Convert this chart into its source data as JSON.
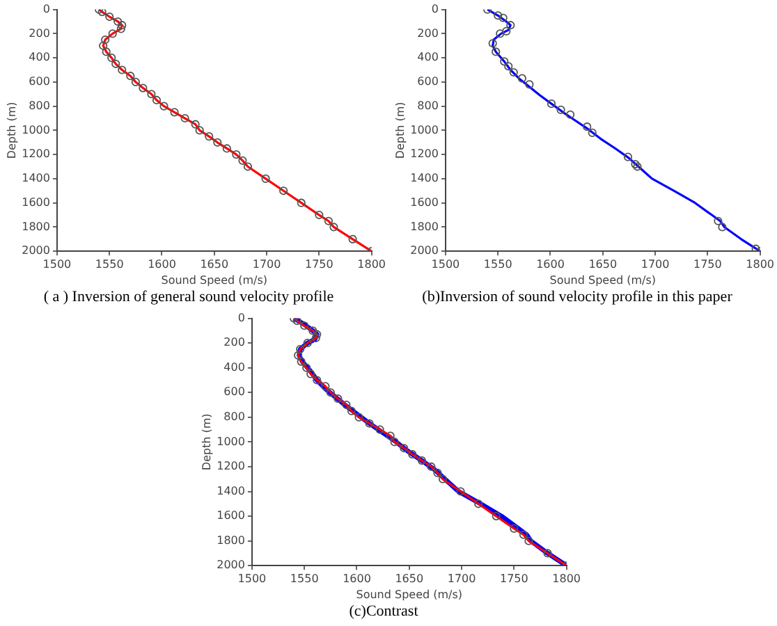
{
  "chart_data": [
    {
      "type": "line",
      "title": "( a ) Inversion of general sound velocity profile",
      "xlabel": "Sound Speed (m/s)",
      "ylabel": "Depth (m)",
      "xlim": [
        1500,
        1800
      ],
      "xticks": [
        1500,
        1550,
        1600,
        1650,
        1700,
        1750,
        1800
      ],
      "ylim": [
        2000,
        0
      ],
      "yticks": [
        0,
        200,
        400,
        600,
        800,
        1000,
        1200,
        1400,
        1600,
        1800,
        2000
      ],
      "grid": false,
      "legend": false,
      "series": [
        {
          "type": "line",
          "color": "#ff0000",
          "marker": "circle",
          "x": [
            1540,
            1543,
            1550,
            1558,
            1562,
            1561,
            1553,
            1546,
            1544,
            1547,
            1552,
            1556,
            1562,
            1570,
            1575,
            1582,
            1590,
            1595,
            1602,
            1612,
            1622,
            1632,
            1636,
            1645,
            1653,
            1662,
            1671,
            1677,
            1682,
            1699,
            1716,
            1733,
            1750,
            1759,
            1764,
            1782,
            1800
          ],
          "values": [
            0,
            20,
            60,
            100,
            130,
            160,
            200,
            250,
            300,
            350,
            400,
            450,
            500,
            550,
            600,
            650,
            700,
            750,
            800,
            850,
            900,
            950,
            1000,
            1050,
            1100,
            1150,
            1200,
            1250,
            1300,
            1400,
            1500,
            1600,
            1700,
            1750,
            1800,
            1900,
            2000
          ]
        }
      ]
    },
    {
      "type": "line",
      "title": "(b)Inversion of sound velocity profile in this paper",
      "xlabel": "Sound Speed (m/s)",
      "ylabel": "Depth (m)",
      "xlim": [
        1500,
        1800
      ],
      "xticks": [
        1500,
        1550,
        1600,
        1650,
        1700,
        1750,
        1800
      ],
      "ylim": [
        2000,
        0
      ],
      "yticks": [
        0,
        200,
        400,
        600,
        800,
        1000,
        1200,
        1400,
        1600,
        1800,
        2000
      ],
      "grid": false,
      "legend": false,
      "series": [
        {
          "type": "line",
          "color": "#0000ff",
          "marker": "none",
          "x": [
            1540,
            1550,
            1558,
            1562,
            1560,
            1553,
            1546,
            1545,
            1548,
            1556,
            1562,
            1570,
            1580,
            1590,
            1601,
            1612,
            1624,
            1636,
            1648,
            1662,
            1675,
            1684,
            1697,
            1718,
            1738,
            1754,
            1762,
            1766,
            1782,
            1800
          ],
          "values": [
            0,
            50,
            100,
            130,
            170,
            200,
            250,
            300,
            350,
            430,
            500,
            570,
            640,
            710,
            780,
            850,
            920,
            990,
            1070,
            1150,
            1230,
            1300,
            1400,
            1500,
            1600,
            1700,
            1750,
            1800,
            1900,
            2000
          ]
        },
        {
          "type": "scatter",
          "color": "#555555",
          "marker": "circle",
          "x": [
            1540,
            1550,
            1555,
            1562,
            1558,
            1552,
            1545,
            1548,
            1556,
            1560,
            1565,
            1573,
            1580,
            1601,
            1610,
            1619,
            1635,
            1640,
            1674,
            1681,
            1683,
            1760,
            1764,
            1796,
            1800
          ],
          "values": [
            0,
            50,
            70,
            130,
            180,
            200,
            280,
            350,
            430,
            470,
            520,
            570,
            620,
            780,
            830,
            870,
            970,
            1020,
            1220,
            1280,
            1300,
            1750,
            1800,
            1980,
            2000
          ]
        }
      ]
    },
    {
      "type": "line",
      "title": "(c)Contrast",
      "xlabel": "Sound Speed (m/s)",
      "ylabel": "Depth (m)",
      "xlim": [
        1500,
        1800
      ],
      "xticks": [
        1500,
        1550,
        1600,
        1650,
        1700,
        1750,
        1800
      ],
      "ylim": [
        2000,
        0
      ],
      "yticks": [
        0,
        200,
        400,
        600,
        800,
        1000,
        1200,
        1400,
        1600,
        1800,
        2000
      ],
      "grid": false,
      "legend": false,
      "series": [
        {
          "type": "line",
          "color": "#0000ff",
          "marker": "none",
          "x": [
            1540,
            1550,
            1558,
            1562,
            1560,
            1553,
            1546,
            1545,
            1548,
            1556,
            1562,
            1570,
            1580,
            1590,
            1601,
            1612,
            1624,
            1636,
            1648,
            1662,
            1675,
            1684,
            1697,
            1718,
            1738,
            1754,
            1762,
            1766,
            1782,
            1800
          ],
          "values": [
            0,
            50,
            100,
            130,
            170,
            200,
            250,
            300,
            350,
            430,
            500,
            570,
            640,
            710,
            780,
            850,
            920,
            990,
            1070,
            1150,
            1230,
            1300,
            1400,
            1500,
            1600,
            1700,
            1750,
            1800,
            1900,
            2000
          ]
        },
        {
          "type": "line",
          "color": "#ff0000",
          "marker": "circle",
          "x": [
            1540,
            1543,
            1550,
            1558,
            1562,
            1561,
            1553,
            1546,
            1544,
            1547,
            1552,
            1556,
            1562,
            1570,
            1575,
            1582,
            1590,
            1595,
            1602,
            1612,
            1622,
            1632,
            1636,
            1645,
            1653,
            1662,
            1671,
            1677,
            1682,
            1699,
            1716,
            1733,
            1750,
            1759,
            1764,
            1782,
            1800
          ],
          "values": [
            0,
            20,
            60,
            100,
            130,
            160,
            200,
            250,
            300,
            350,
            400,
            450,
            500,
            550,
            600,
            650,
            700,
            750,
            800,
            850,
            900,
            950,
            1000,
            1050,
            1100,
            1150,
            1200,
            1250,
            1300,
            1400,
            1500,
            1600,
            1700,
            1750,
            1800,
            1900,
            2000
          ]
        }
      ]
    }
  ]
}
